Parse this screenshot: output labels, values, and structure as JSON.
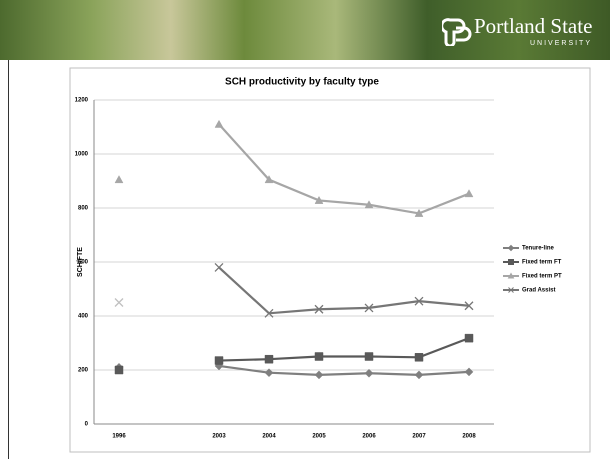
{
  "header": {
    "logo_title": "Portland State",
    "logo_subtitle": "UNIVERSITY"
  },
  "chart_data": {
    "type": "line",
    "title": "SCH productivity by faculty type",
    "y_label": "SCH/FTE",
    "categories": [
      "1996",
      null,
      "2003",
      "2004",
      "2005",
      "2006",
      "2007",
      "2008"
    ],
    "series": [
      {
        "name": "Tenure-line",
        "color": "#7f7f7f",
        "marker": "diamond",
        "values": [
          210,
          null,
          215,
          190,
          182,
          188,
          182,
          193
        ]
      },
      {
        "name": "Fixed term FT",
        "color": "#595959",
        "marker": "square",
        "values": [
          200,
          null,
          235,
          240,
          250,
          250,
          247,
          318
        ]
      },
      {
        "name": "Fixed term PT",
        "color": "#a6a6a6",
        "marker": "triangle",
        "values": [
          905,
          null,
          1110,
          905,
          828,
          812,
          780,
          853
        ]
      },
      {
        "name": "Grad Assist",
        "color": "#767676",
        "marker": "x",
        "values": [
          450,
          null,
          580,
          410,
          425,
          430,
          455,
          438
        ]
      }
    ],
    "ylim": [
      0,
      1200
    ],
    "yticks": [
      0,
      200,
      400,
      600,
      800,
      1000,
      1200
    ],
    "grid": true,
    "legend": "right"
  }
}
